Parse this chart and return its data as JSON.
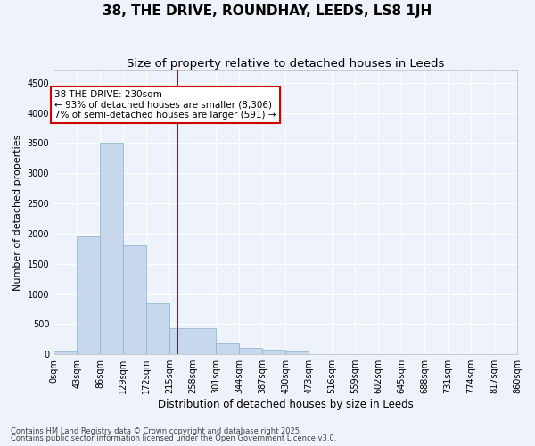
{
  "title": "38, THE DRIVE, ROUNDHAY, LEEDS, LS8 1JH",
  "subtitle": "Size of property relative to detached houses in Leeds",
  "xlabel": "Distribution of detached houses by size in Leeds",
  "ylabel": "Number of detached properties",
  "bar_color": "#c8d8ec",
  "bar_edge_color": "#8ab0cc",
  "background_color": "#eef2fa",
  "grid_color": "#ffffff",
  "bin_edges": [
    0,
    43,
    86,
    129,
    172,
    215,
    258,
    301,
    344,
    387,
    430,
    473,
    516,
    559,
    602,
    645,
    688,
    731,
    774,
    817,
    860
  ],
  "bar_heights": [
    50,
    1950,
    3500,
    1800,
    850,
    430,
    430,
    180,
    110,
    80,
    50,
    0,
    0,
    0,
    0,
    0,
    0,
    0,
    0,
    0
  ],
  "property_size": 230,
  "annotation_text": "38 THE DRIVE: 230sqm\n← 93% of detached houses are smaller (8,306)\n7% of semi-detached houses are larger (591) →",
  "annotation_box_color": "#ffffff",
  "annotation_box_edge": "#cc0000",
  "vline_color": "#cc0000",
  "ylim": [
    0,
    4700
  ],
  "yticks": [
    0,
    500,
    1000,
    1500,
    2000,
    2500,
    3000,
    3500,
    4000,
    4500
  ],
  "footer1": "Contains HM Land Registry data © Crown copyright and database right 2025.",
  "footer2": "Contains public sector information licensed under the Open Government Licence v3.0.",
  "title_fontsize": 11,
  "subtitle_fontsize": 9.5,
  "tick_labelsize": 7,
  "ylabel_fontsize": 8,
  "xlabel_fontsize": 8.5,
  "annotation_fontsize": 7.5,
  "footer_fontsize": 6
}
